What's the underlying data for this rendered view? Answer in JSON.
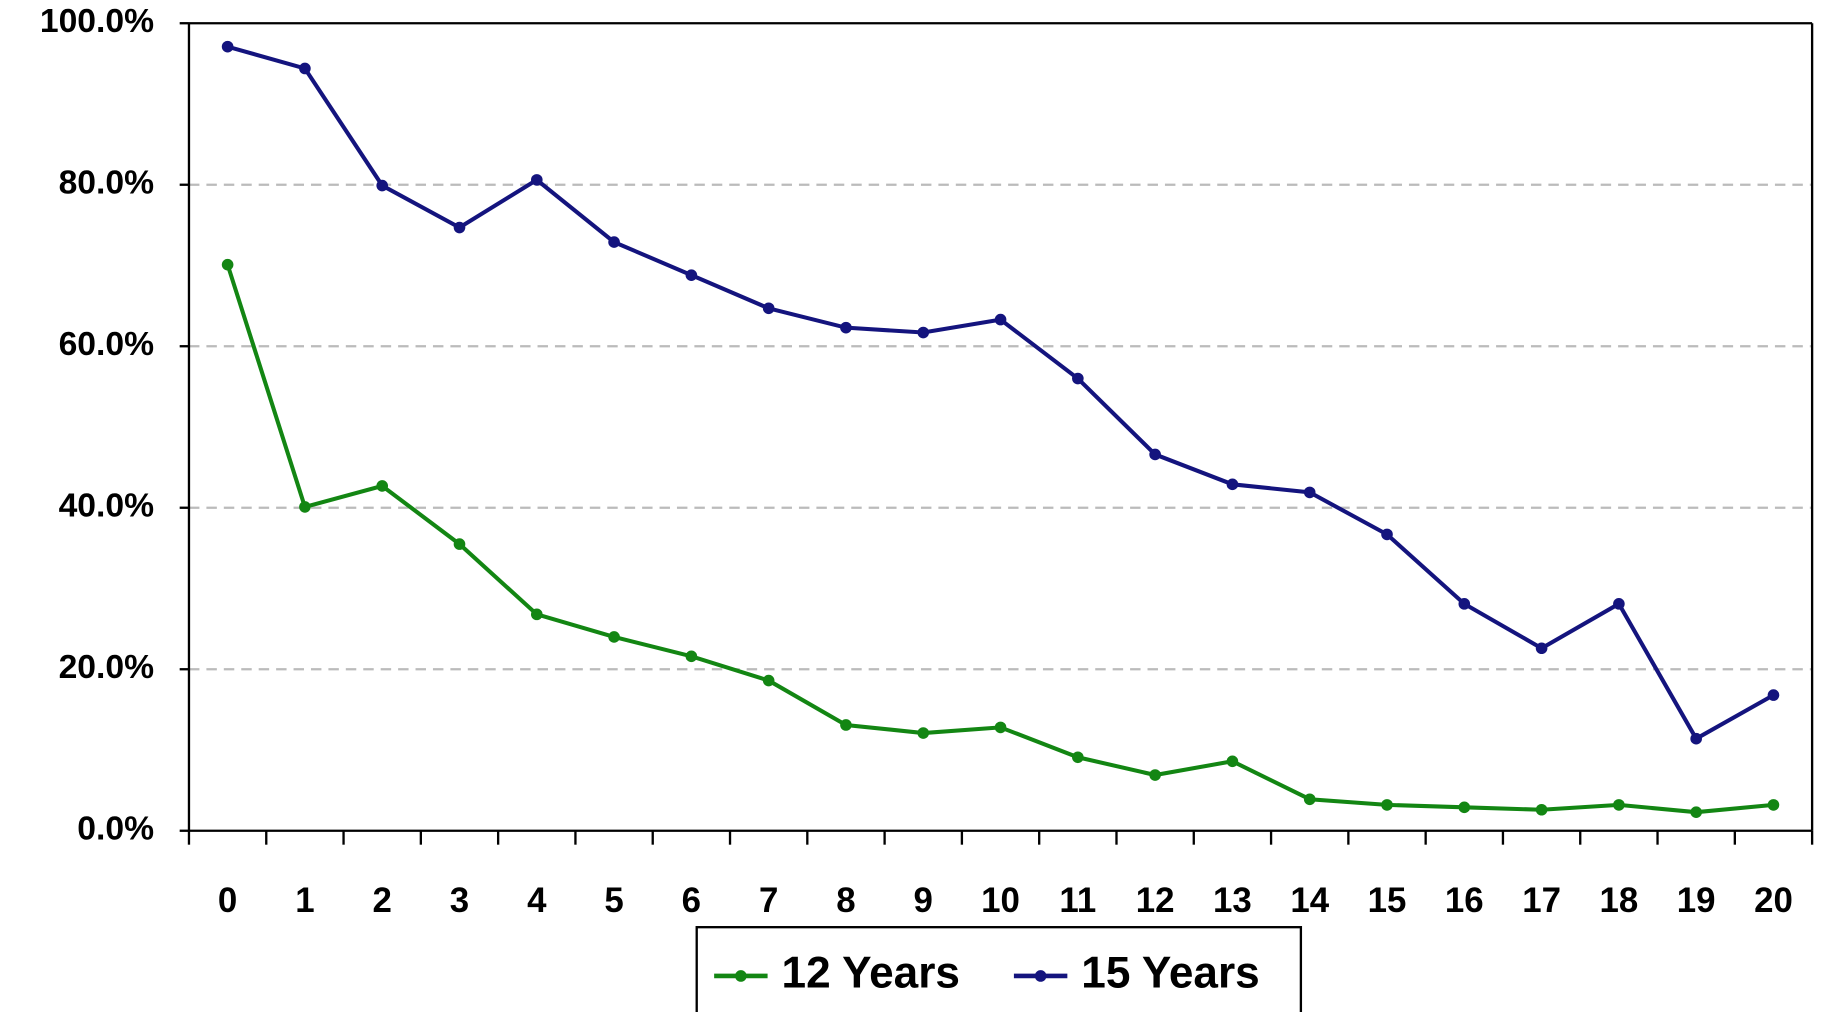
{
  "chart_data": {
    "type": "line",
    "categories": [
      "0",
      "1",
      "2",
      "3",
      "4",
      "5",
      "6",
      "7",
      "8",
      "9",
      "10",
      "11",
      "12",
      "13",
      "14",
      "15",
      "16",
      "17",
      "18",
      "19",
      "20"
    ],
    "series": [
      {
        "name": "12 Years",
        "color": "#138613",
        "values": [
          70.1,
          40.1,
          42.7,
          35.5,
          26.8,
          24.0,
          21.6,
          18.6,
          13.1,
          12.1,
          12.8,
          9.1,
          6.9,
          8.6,
          3.9,
          3.2,
          2.9,
          2.6,
          3.2,
          2.3,
          3.2
        ]
      },
      {
        "name": "15 Years",
        "color": "#14147e",
        "values": [
          97.1,
          94.4,
          79.9,
          74.7,
          80.6,
          72.9,
          68.8,
          64.7,
          62.3,
          61.7,
          63.3,
          56.0,
          46.6,
          42.9,
          41.9,
          36.7,
          28.1,
          22.6,
          28.1,
          11.4,
          16.8
        ]
      }
    ],
    "ylim": [
      0,
      100
    ],
    "yticks": [
      {
        "value": 0,
        "label": "0.0%"
      },
      {
        "value": 20,
        "label": "20.0%"
      },
      {
        "value": 40,
        "label": "40.0%"
      },
      {
        "value": 60,
        "label": "60.0%"
      },
      {
        "value": 80,
        "label": "80.0%"
      },
      {
        "value": 100,
        "label": "100.0%"
      }
    ],
    "grid": true,
    "legend": "bottom"
  }
}
